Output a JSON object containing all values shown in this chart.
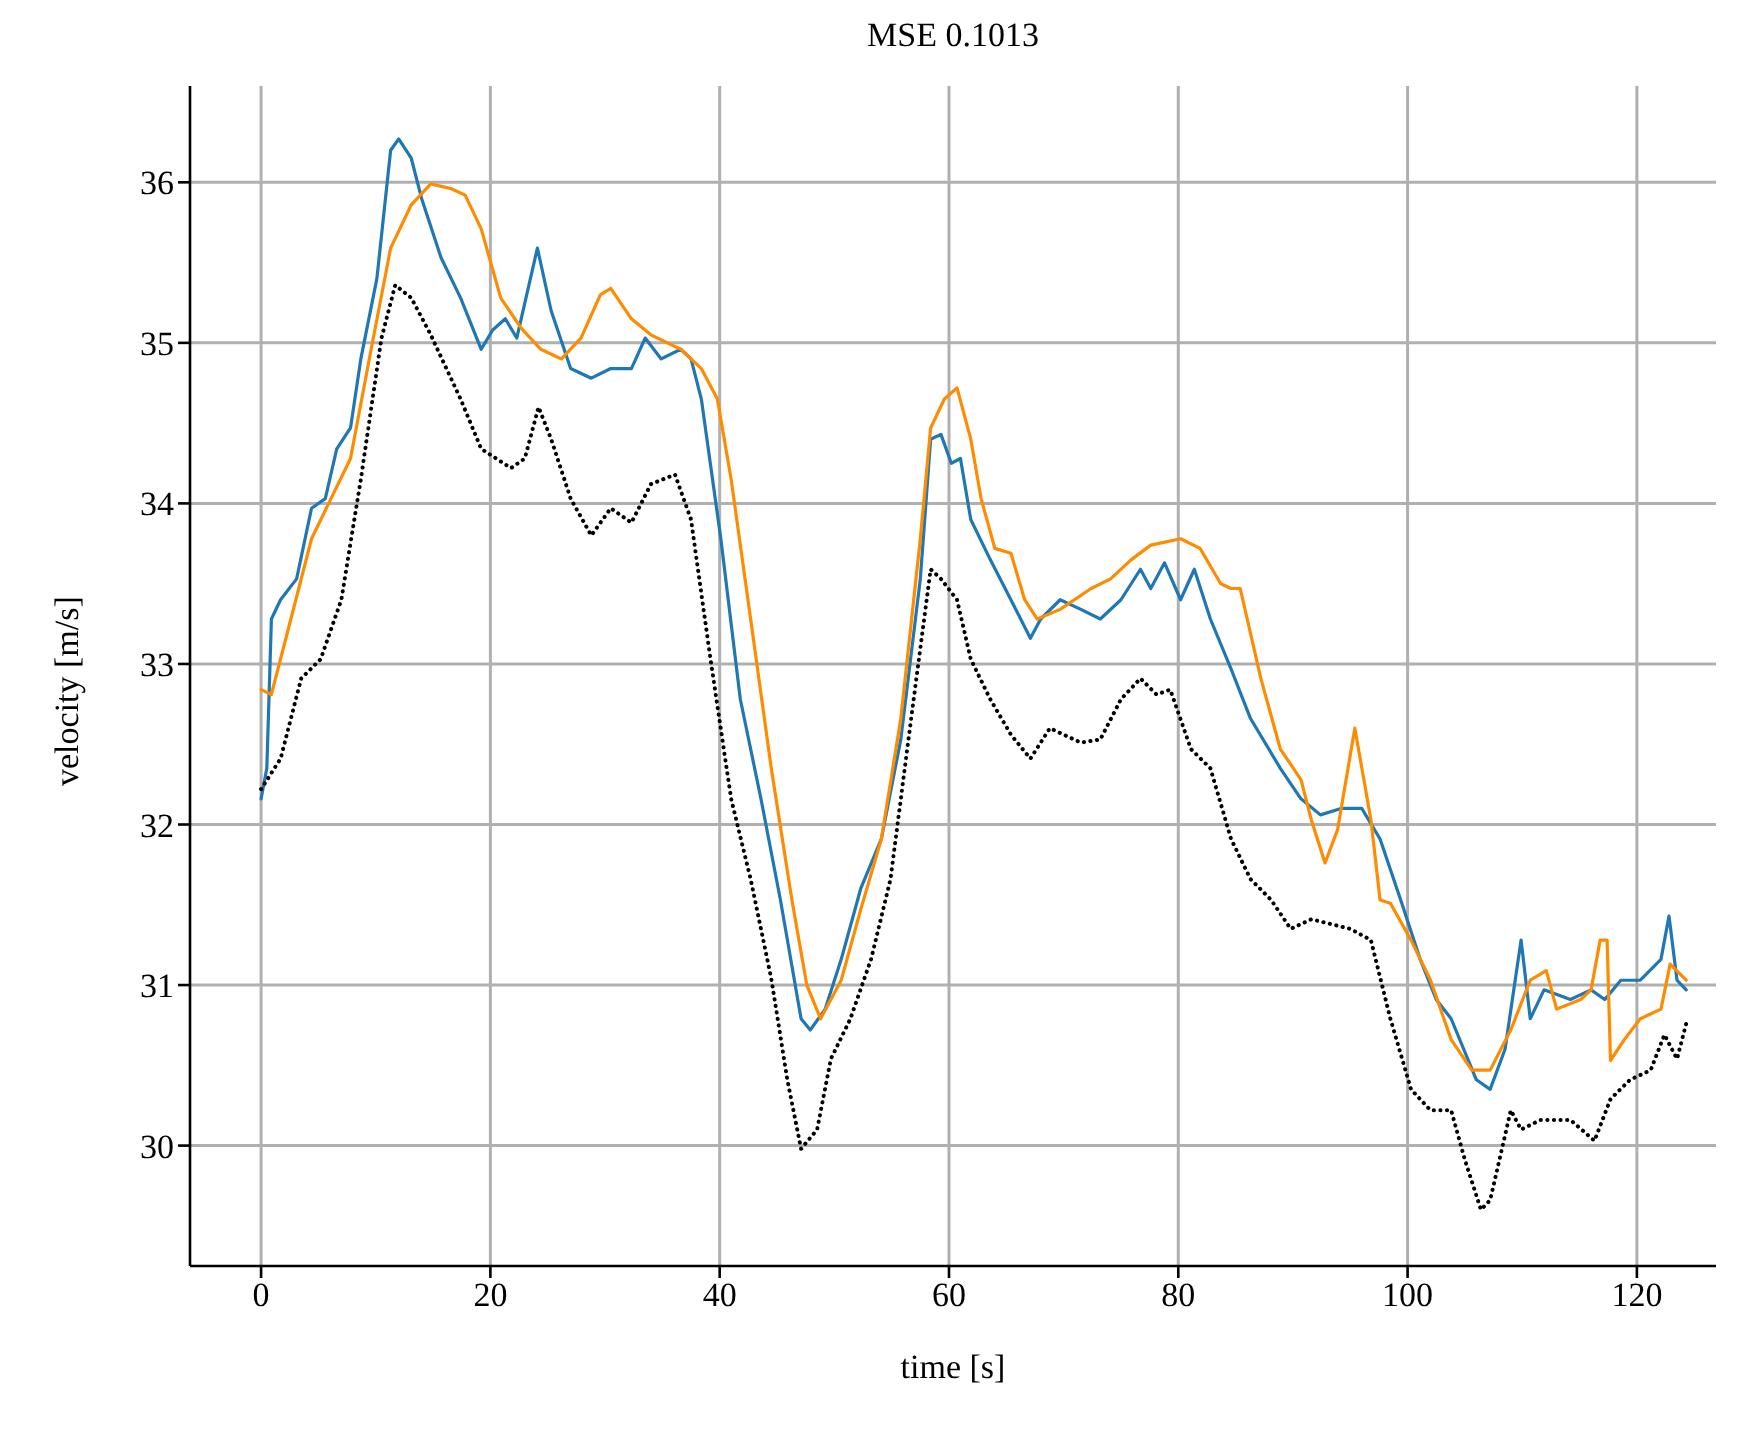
{
  "chart_data": {
    "type": "line",
    "title": "MSE 0.1013",
    "xlabel": "time [s]",
    "ylabel": "velocity [m/s]",
    "xlim": [
      -6.2,
      126.9
    ],
    "ylim": [
      29.25,
      36.6
    ],
    "xticks": [
      0,
      20,
      40,
      60,
      80,
      100,
      120
    ],
    "yticks": [
      30,
      31,
      32,
      33,
      34,
      35,
      36
    ],
    "grid": true,
    "legend": false,
    "marker": "none",
    "series": [
      {
        "color": "#1f77b4",
        "line_style": "solid",
        "x": [
          0,
          0.5,
          0.9,
          1.7,
          3.1,
          4.4,
          5.6,
          6.6,
          7.8,
          8.7,
          10.1,
          11.3,
          12,
          13.1,
          14,
          15.7,
          17.4,
          19.2,
          20.2,
          21.3,
          22.3,
          24.1,
          25.3,
          27,
          28.8,
          30.5,
          32.3,
          33.5,
          34.9,
          36.6,
          37.5,
          38.4,
          40.1,
          41.8,
          43.6,
          45.3,
          47.1,
          47.9,
          49.2,
          50.6,
          52.3,
          54.1,
          55.8,
          57.5,
          58.4,
          59.3,
          60.2,
          61,
          61.9,
          63.6,
          65.4,
          67.1,
          68,
          69.7,
          71.5,
          73.2,
          75,
          76.7,
          77.6,
          78.8,
          80.2,
          81.4,
          82.8,
          84.6,
          86.3,
          88.9,
          90.7,
          92.4,
          94.2,
          96,
          97.6,
          99.4,
          101.1,
          102.5,
          103.8,
          106,
          107.2,
          108.5,
          109.9,
          110.7,
          111.9,
          114.2,
          116,
          117.2,
          118.6,
          120.3,
          122.1,
          122.8,
          123.5,
          124.3
        ],
        "values": [
          32.16,
          32.35,
          33.28,
          33.4,
          33.53,
          33.97,
          34.03,
          34.34,
          34.47,
          34.9,
          35.4,
          36.2,
          36.27,
          36.15,
          35.9,
          35.53,
          35.28,
          34.96,
          35.08,
          35.15,
          35.03,
          35.59,
          35.2,
          34.84,
          34.78,
          34.84,
          34.84,
          35.03,
          34.9,
          34.96,
          34.9,
          34.65,
          33.78,
          32.78,
          32.16,
          31.53,
          30.79,
          30.72,
          30.85,
          31.16,
          31.6,
          31.91,
          32.53,
          33.53,
          34.4,
          34.43,
          34.25,
          34.28,
          33.9,
          33.65,
          33.4,
          33.16,
          33.28,
          33.4,
          33.34,
          33.28,
          33.4,
          33.59,
          33.47,
          33.63,
          33.4,
          33.59,
          33.28,
          32.97,
          32.66,
          32.35,
          32.16,
          32.06,
          32.1,
          32.1,
          31.91,
          31.53,
          31.16,
          30.91,
          30.79,
          30.41,
          30.35,
          30.6,
          31.28,
          30.79,
          30.97,
          30.91,
          30.97,
          30.91,
          31.03,
          31.03,
          31.16,
          31.43,
          31.03,
          30.97
        ]
      },
      {
        "color": "#ff8c00",
        "line_style": "solid",
        "x": [
          0,
          0.9,
          2.6,
          4.4,
          6.1,
          7.8,
          9.6,
          11.3,
          13.1,
          14.8,
          16.6,
          17.8,
          19.2,
          20.9,
          22.7,
          24.4,
          26.2,
          27.9,
          29.6,
          30.5,
          32.3,
          34,
          36.6,
          38.4,
          39.8,
          41,
          42.7,
          44.5,
          46.3,
          47.6,
          48.8,
          50.6,
          52.3,
          54.1,
          55.8,
          57.5,
          58.4,
          59.6,
          60.7,
          61.9,
          62.8,
          64,
          65.4,
          66.6,
          67.7,
          69.7,
          72.4,
          74.1,
          75.9,
          77.6,
          80.2,
          81.9,
          83.7,
          84.6,
          85.4,
          87.2,
          88.9,
          90.7,
          91.6,
          92.8,
          93.9,
          95.4,
          96.8,
          97.6,
          98.5,
          100.3,
          102,
          103.8,
          105.6,
          107.2,
          109,
          110.7,
          112.1,
          113,
          115.1,
          116,
          116.8,
          117.4,
          117.7,
          118.9,
          120.3,
          122.1,
          122.9,
          124.3
        ],
        "values": [
          32.84,
          32.81,
          33.28,
          33.78,
          34.03,
          34.28,
          34.96,
          35.59,
          35.86,
          35.99,
          35.96,
          35.92,
          35.71,
          35.28,
          35.09,
          34.96,
          34.9,
          35.03,
          35.3,
          35.34,
          35.15,
          35.05,
          34.96,
          34.84,
          34.65,
          34.15,
          33.28,
          32.35,
          31.53,
          31,
          30.79,
          31.03,
          31.47,
          31.91,
          32.66,
          33.78,
          34.47,
          34.65,
          34.72,
          34.4,
          34.03,
          33.72,
          33.69,
          33.4,
          33.28,
          33.34,
          33.47,
          33.53,
          33.65,
          33.74,
          33.78,
          33.72,
          33.5,
          33.47,
          33.47,
          32.91,
          32.47,
          32.28,
          32.03,
          31.76,
          31.97,
          32.6,
          32.03,
          31.53,
          31.51,
          31.28,
          31.03,
          30.66,
          30.47,
          30.47,
          30.72,
          31.03,
          31.09,
          30.85,
          30.91,
          30.97,
          31.28,
          31.28,
          30.53,
          30.66,
          30.79,
          30.85,
          31.13,
          31.03
        ]
      },
      {
        "color": "#000000",
        "line_style": "dotted",
        "x": [
          0,
          1.7,
          3.5,
          5.2,
          7,
          8.7,
          10.5,
          11.7,
          13.1,
          14.8,
          17.4,
          19.2,
          21.8,
          23,
          24.2,
          25.3,
          27,
          28.8,
          30.5,
          32.3,
          34,
          36.1,
          37.5,
          39.2,
          41,
          42.7,
          44.5,
          45.9,
          47.1,
          48.5,
          49.7,
          51.4,
          53.2,
          54.9,
          56.7,
          58.4,
          59.3,
          60.7,
          61.9,
          63.6,
          65.4,
          67.1,
          68.8,
          71.5,
          73.2,
          75,
          76.7,
          78.1,
          79.3,
          81.1,
          82.8,
          84.6,
          86.3,
          88.1,
          89.8,
          91.6,
          95,
          96.8,
          98.5,
          100.3,
          102,
          103.8,
          105,
          106.4,
          107.2,
          109,
          109.9,
          111.6,
          114.2,
          116.3,
          117.7,
          119.4,
          121.2,
          122.4,
          123.5,
          124.3
        ],
        "values": [
          32.22,
          32.41,
          32.91,
          33.03,
          33.4,
          34.15,
          35.03,
          35.36,
          35.28,
          35.05,
          34.65,
          34.34,
          34.22,
          34.28,
          34.6,
          34.4,
          34.03,
          33.8,
          33.97,
          33.88,
          34.12,
          34.18,
          33.9,
          33.03,
          32.16,
          31.66,
          31.04,
          30.41,
          29.98,
          30.1,
          30.54,
          30.79,
          31.16,
          31.66,
          32.66,
          33.59,
          33.53,
          33.4,
          33.03,
          32.78,
          32.56,
          32.41,
          32.6,
          32.51,
          32.53,
          32.78,
          32.91,
          32.81,
          32.84,
          32.47,
          32.35,
          31.91,
          31.66,
          31.53,
          31.35,
          31.41,
          31.35,
          31.28,
          30.79,
          30.35,
          30.22,
          30.22,
          29.91,
          29.6,
          29.66,
          30.22,
          30.1,
          30.16,
          30.16,
          30.03,
          30.29,
          30.41,
          30.47,
          30.69,
          30.54,
          30.76
        ]
      }
    ]
  }
}
